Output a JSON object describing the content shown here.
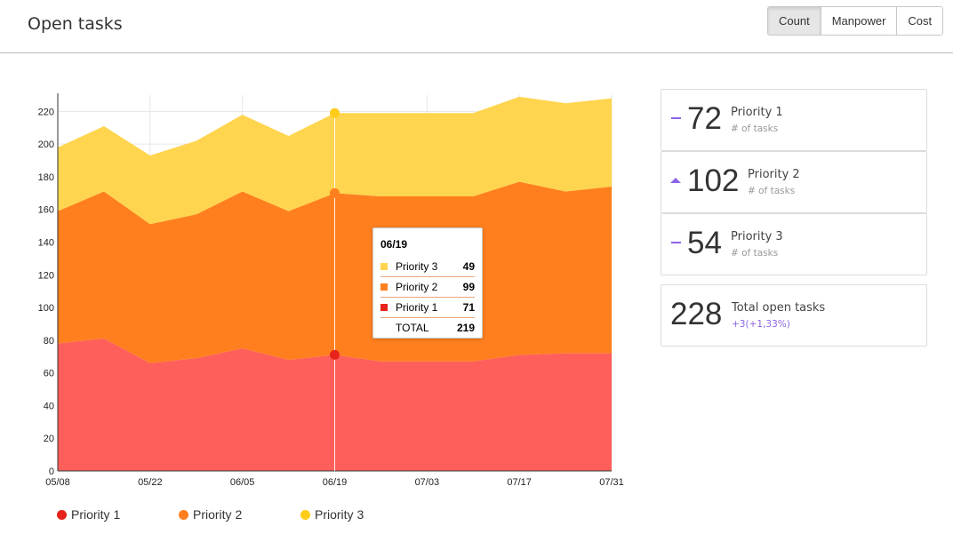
{
  "header": {
    "title": "Open tasks",
    "buttons": [
      "Count",
      "Manpower",
      "Cost"
    ],
    "active_button": "Count"
  },
  "colors": {
    "priority1": "#ff5f5a",
    "priority2": "#ff7f1e",
    "priority3": "#ffd54f",
    "accent": "#8c64e6"
  },
  "chart_data": {
    "type": "area",
    "stacked": true,
    "x": [
      "05/08",
      "05/15",
      "05/22",
      "05/29",
      "06/05",
      "06/12",
      "06/19",
      "06/26",
      "07/03",
      "07/10",
      "07/17",
      "07/24",
      "07/31"
    ],
    "x_tick_labels": [
      "05/08",
      "05/22",
      "06/05",
      "06/19",
      "07/03",
      "07/17",
      "07/31"
    ],
    "series": [
      {
        "name": "Priority 1",
        "values": [
          78,
          81,
          66,
          69,
          75,
          68,
          71,
          67,
          67,
          67,
          71,
          72,
          72
        ]
      },
      {
        "name": "Priority 2",
        "values": [
          81,
          90,
          85,
          88,
          96,
          91,
          99,
          101,
          101,
          101,
          106,
          99,
          102
        ]
      },
      {
        "name": "Priority 3",
        "values": [
          39,
          40,
          42,
          45,
          47,
          46,
          49,
          51,
          51,
          51,
          52,
          54,
          54
        ]
      }
    ],
    "ylim": [
      0,
      230
    ],
    "y_ticks": [
      0,
      20,
      40,
      60,
      80,
      100,
      120,
      140,
      160,
      180,
      200,
      220
    ],
    "grid": true,
    "legend_position": "bottom-left",
    "highlight": {
      "x": "06/19",
      "rows": [
        {
          "name": "Priority 3",
          "value": "49"
        },
        {
          "name": "Priority 2",
          "value": "99"
        },
        {
          "name": "Priority 1",
          "value": "71"
        },
        {
          "name": "TOTAL",
          "value": "219"
        }
      ]
    }
  },
  "legend": [
    "Priority 1",
    "Priority 2",
    "Priority 3"
  ],
  "cards": [
    {
      "value": "72",
      "label": "Priority 1",
      "sub": "# of tasks",
      "trend": "flat"
    },
    {
      "value": "102",
      "label": "Priority 2",
      "sub": "# of tasks",
      "trend": "up"
    },
    {
      "value": "54",
      "label": "Priority 3",
      "sub": "# of tasks",
      "trend": "flat"
    },
    {
      "value": "228",
      "label": "Total open tasks",
      "sub": "+3(+1,33%)",
      "trend": "none"
    }
  ]
}
